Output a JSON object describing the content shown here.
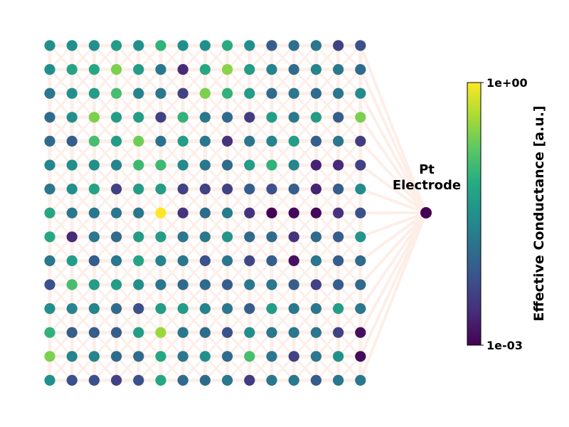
{
  "electrode": {
    "label_line1": "Pt",
    "label_line2": "Electrode"
  },
  "colorbar": {
    "label": "Effective Conductance [a.u.]",
    "max_label": "1e+00",
    "min_label": "1e-03",
    "min_value": 0.001,
    "max_value": 1.0,
    "scale": "log",
    "colormap": [
      "#440154",
      "#472c7a",
      "#3b518b",
      "#2c718e",
      "#21908d",
      "#27ad81",
      "#5cc863",
      "#aadc32",
      "#fde725"
    ]
  },
  "grid": {
    "rows": 15,
    "cols": 15,
    "edge_color": "#fdeee8",
    "electrode_color": "#440154",
    "node_levels": [
      [
        0.5,
        0.5,
        0.5,
        0.55,
        0.5,
        0.65,
        0.5,
        0.5,
        0.62,
        0.5,
        0.3,
        0.37,
        0.4,
        0.2,
        0.25
      ],
      [
        0.5,
        0.58,
        0.6,
        0.8,
        0.55,
        0.4,
        0.12,
        0.6,
        0.82,
        0.55,
        0.45,
        0.35,
        0.45,
        0.4,
        0.35
      ],
      [
        0.4,
        0.5,
        0.55,
        0.7,
        0.45,
        0.4,
        0.2,
        0.8,
        0.65,
        0.55,
        0.35,
        0.4,
        0.35,
        0.4,
        0.48
      ],
      [
        0.35,
        0.5,
        0.8,
        0.55,
        0.55,
        0.2,
        0.65,
        0.4,
        0.35,
        0.18,
        0.55,
        0.4,
        0.55,
        0.3,
        0.8
      ],
      [
        0.35,
        0.3,
        0.7,
        0.55,
        0.78,
        0.38,
        0.55,
        0.4,
        0.15,
        0.4,
        0.45,
        0.55,
        0.3,
        0.4,
        0.18
      ],
      [
        0.45,
        0.5,
        0.5,
        0.45,
        0.68,
        0.68,
        0.48,
        0.4,
        0.35,
        0.55,
        0.65,
        0.45,
        0.1,
        0.12,
        0.2
      ],
      [
        0.4,
        0.5,
        0.58,
        0.2,
        0.55,
        0.55,
        0.2,
        0.2,
        0.2,
        0.3,
        0.25,
        0.3,
        0.1,
        0.3,
        0.48
      ],
      [
        0.6,
        0.4,
        0.4,
        0.4,
        0.4,
        1.0,
        0.15,
        0.35,
        0.42,
        0.15,
        0.0,
        0.02,
        0.02,
        0.15,
        0.25
      ],
      [
        0.6,
        0.12,
        0.4,
        0.35,
        0.55,
        0.55,
        0.4,
        0.4,
        0.52,
        0.35,
        0.35,
        0.15,
        0.35,
        0.3,
        0.52
      ],
      [
        0.4,
        0.55,
        0.3,
        0.4,
        0.58,
        0.45,
        0.4,
        0.25,
        0.4,
        0.22,
        0.3,
        0.05,
        0.4,
        0.3,
        0.35
      ],
      [
        0.25,
        0.7,
        0.55,
        0.55,
        0.5,
        0.4,
        0.35,
        0.35,
        0.3,
        0.4,
        0.4,
        0.3,
        0.2,
        0.3,
        0.35
      ],
      [
        0.5,
        0.45,
        0.45,
        0.35,
        0.25,
        0.55,
        0.55,
        0.45,
        0.4,
        0.3,
        0.55,
        0.4,
        0.4,
        0.55,
        0.4
      ],
      [
        0.65,
        0.3,
        0.3,
        0.3,
        0.55,
        0.85,
        0.4,
        0.35,
        0.25,
        0.5,
        0.4,
        0.4,
        0.4,
        0.2,
        0.04
      ],
      [
        0.8,
        0.45,
        0.45,
        0.35,
        0.35,
        0.6,
        0.4,
        0.5,
        0.35,
        0.7,
        0.4,
        0.2,
        0.4,
        0.5,
        0.03
      ],
      [
        0.5,
        0.25,
        0.25,
        0.2,
        0.25,
        0.6,
        0.35,
        0.35,
        0.4,
        0.18,
        0.4,
        0.4,
        0.3,
        0.4,
        0.4
      ]
    ]
  }
}
